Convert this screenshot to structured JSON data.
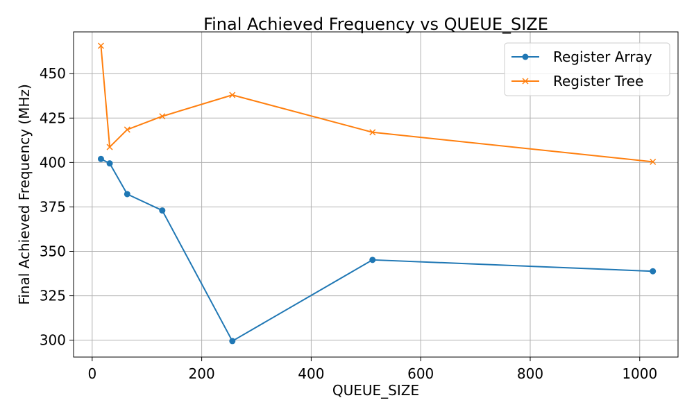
{
  "chart_data": {
    "type": "line",
    "title": "Final Achieved Frequency vs QUEUE_SIZE",
    "xlabel": "QUEUE_SIZE",
    "ylabel": "Final Achieved Frequency (MHz)",
    "xlim": [
      -34,
      1070
    ],
    "ylim": [
      290.5,
      473.5
    ],
    "xticks": [
      0,
      200,
      400,
      600,
      800,
      1000
    ],
    "yticks": [
      300,
      325,
      350,
      375,
      400,
      425,
      450
    ],
    "grid": true,
    "legend": "top-right",
    "x": [
      16,
      32,
      64,
      128,
      256,
      512,
      1024
    ],
    "series": [
      {
        "name": "Register Array",
        "marker": "circle",
        "color": "#1f77b4",
        "values": [
          402,
          399.5,
          382.2,
          373,
          299.5,
          345.2,
          338.8
        ]
      },
      {
        "name": "Register Tree",
        "marker": "x",
        "color": "#ff7f0e",
        "values": [
          465.7,
          408.7,
          418.5,
          426,
          438,
          417,
          400.4
        ]
      }
    ]
  }
}
